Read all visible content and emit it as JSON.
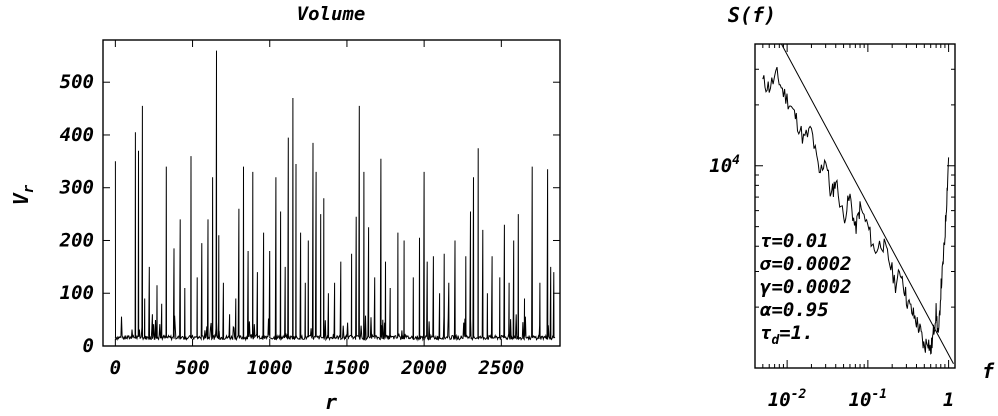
{
  "chart_data": [
    {
      "type": "line",
      "title": "Volume",
      "xlabel": "r",
      "ylabel_base": "V",
      "ylabel_sub": "r",
      "xlim": [
        -80,
        2880
      ],
      "ylim": [
        0,
        580
      ],
      "xticks": [
        0,
        500,
        1000,
        1500,
        2000,
        2500
      ],
      "xtick_labels": [
        "0",
        "500",
        "1000",
        "1500",
        "2000",
        "2500"
      ],
      "yticks": [
        0,
        100,
        200,
        300,
        400,
        500
      ],
      "ytick_labels": [
        "0",
        "100",
        "200",
        "300",
        "400",
        "500"
      ],
      "series": [
        {
          "baseline": 12,
          "spikes": [
            [
              0,
              350
            ],
            [
              130,
              405
            ],
            [
              150,
              370
            ],
            [
              175,
              455
            ],
            [
              190,
              90
            ],
            [
              220,
              150
            ],
            [
              240,
              60
            ],
            [
              270,
              115
            ],
            [
              300,
              80
            ],
            [
              330,
              340
            ],
            [
              380,
              185
            ],
            [
              420,
              240
            ],
            [
              450,
              110
            ],
            [
              490,
              360
            ],
            [
              530,
              130
            ],
            [
              560,
              195
            ],
            [
              600,
              240
            ],
            [
              630,
              320
            ],
            [
              655,
              560
            ],
            [
              670,
              210
            ],
            [
              700,
              120
            ],
            [
              740,
              60
            ],
            [
              780,
              90
            ],
            [
              800,
              260
            ],
            [
              830,
              340
            ],
            [
              860,
              180
            ],
            [
              890,
              330
            ],
            [
              920,
              140
            ],
            [
              960,
              215
            ],
            [
              1000,
              180
            ],
            [
              1040,
              320
            ],
            [
              1070,
              255
            ],
            [
              1100,
              150
            ],
            [
              1120,
              395
            ],
            [
              1150,
              470
            ],
            [
              1170,
              345
            ],
            [
              1200,
              215
            ],
            [
              1230,
              120
            ],
            [
              1250,
              200
            ],
            [
              1280,
              385
            ],
            [
              1300,
              330
            ],
            [
              1330,
              250
            ],
            [
              1350,
              280
            ],
            [
              1380,
              100
            ],
            [
              1420,
              120
            ],
            [
              1460,
              160
            ],
            [
              1530,
              175
            ],
            [
              1560,
              245
            ],
            [
              1580,
              455
            ],
            [
              1610,
              330
            ],
            [
              1640,
              225
            ],
            [
              1680,
              130
            ],
            [
              1720,
              355
            ],
            [
              1750,
              160
            ],
            [
              1780,
              110
            ],
            [
              1830,
              215
            ],
            [
              1870,
              200
            ],
            [
              1930,
              130
            ],
            [
              1970,
              205
            ],
            [
              2000,
              330
            ],
            [
              2020,
              160
            ],
            [
              2060,
              170
            ],
            [
              2100,
              100
            ],
            [
              2130,
              175
            ],
            [
              2160,
              120
            ],
            [
              2200,
              200
            ],
            [
              2270,
              170
            ],
            [
              2300,
              255
            ],
            [
              2320,
              320
            ],
            [
              2350,
              375
            ],
            [
              2380,
              220
            ],
            [
              2410,
              100
            ],
            [
              2440,
              170
            ],
            [
              2490,
              130
            ],
            [
              2520,
              230
            ],
            [
              2550,
              120
            ],
            [
              2580,
              200
            ],
            [
              2610,
              250
            ],
            [
              2650,
              90
            ],
            [
              2700,
              340
            ],
            [
              2750,
              120
            ],
            [
              2800,
              335
            ],
            [
              2820,
              150
            ],
            [
              2840,
              140
            ]
          ]
        }
      ]
    },
    {
      "type": "line",
      "scale": "log-log",
      "ylabel": "S(f)",
      "xlabel": "f",
      "xlim": [
        0.004,
        1.2
      ],
      "ylim": [
        1000,
        40000
      ],
      "xtick_labels": [
        {
          "base": "10",
          "exp": "-2",
          "value": 0.01
        },
        {
          "base": "10",
          "exp": "-1",
          "value": 0.1
        },
        {
          "base": "1",
          "exp": "",
          "value": 1
        }
      ],
      "ytick_labels": [
        {
          "base": "10",
          "exp": "4",
          "value": 10000
        }
      ],
      "fit_line": {
        "x": [
          0.0085,
          1.15
        ],
        "y": [
          40000,
          1050
        ]
      },
      "series": [
        {
          "x": [
            0.005,
            0.006,
            0.0075,
            0.009,
            0.011,
            0.013,
            0.016,
            0.02,
            0.025,
            0.03,
            0.035,
            0.04,
            0.05,
            0.06,
            0.07,
            0.08,
            0.1,
            0.12,
            0.15,
            0.18,
            0.22,
            0.26,
            0.3,
            0.35,
            0.4,
            0.45,
            0.5,
            0.55,
            0.6,
            0.65,
            0.7,
            0.75,
            0.8,
            0.85,
            0.9,
            0.95,
            1.0
          ],
          "y": [
            26000,
            24500,
            28000,
            23000,
            20000,
            17000,
            13500,
            15000,
            9000,
            11000,
            7000,
            8500,
            5500,
            7000,
            4800,
            6200,
            5000,
            3800,
            4200,
            3500,
            2600,
            3000,
            2200,
            1900,
            1700,
            1500,
            1250,
            1400,
            1200,
            1500,
            1900,
            1400,
            2400,
            3200,
            4500,
            7000,
            11000
          ]
        }
      ],
      "annotations": [
        {
          "sym": "τ",
          "sub": "",
          "val": "=0.01"
        },
        {
          "sym": "σ",
          "sub": "",
          "val": "=0.0002"
        },
        {
          "sym": "γ",
          "sub": "",
          "val": "=0.0002"
        },
        {
          "sym": "α",
          "sub": "",
          "val": "=0.95"
        },
        {
          "sym": "τ",
          "sub": "d",
          "val": "=1."
        }
      ]
    }
  ]
}
